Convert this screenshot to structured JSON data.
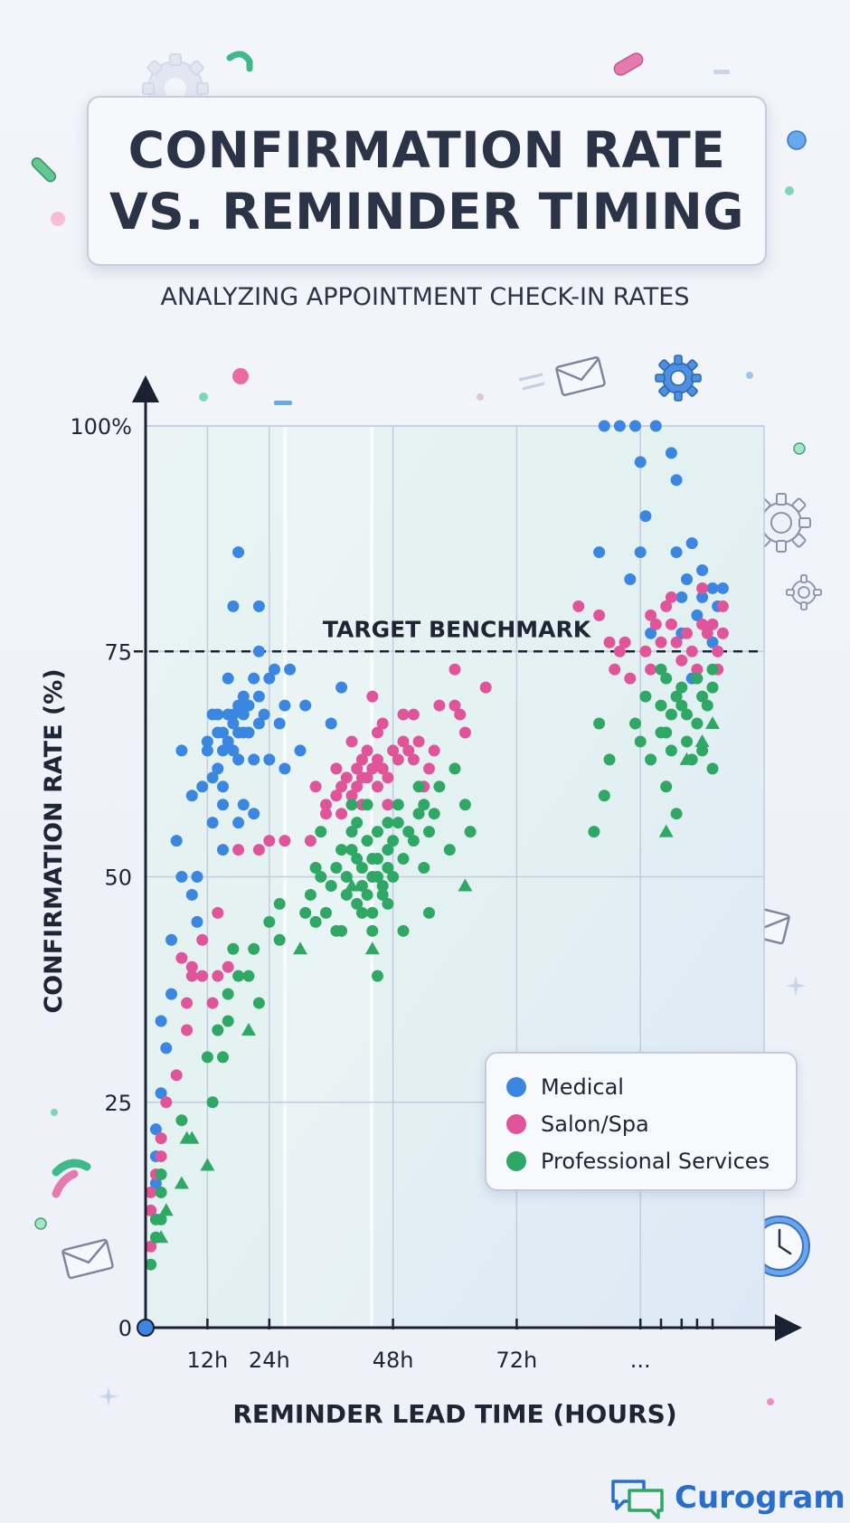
{
  "title_lines": [
    "CONFIRMATION RATE",
    "VS. REMINDER TIMING"
  ],
  "subtitle": "ANALYZING APPOINTMENT CHECK-IN RATES",
  "brand": {
    "name": "Curogram",
    "icon": "chat-bubbles-icon"
  },
  "colors": {
    "medical": "#3a86e0",
    "salon": "#e0559a",
    "professional": "#2fa866",
    "axis": "#1a2132",
    "grid": "#c2cbe0",
    "benchmark": "#1e2535"
  },
  "decorations": [
    "gear-icon",
    "envelope-icon",
    "clock-icon",
    "sparkle-icon"
  ],
  "chart_data": {
    "type": "scatter",
    "title": "CONFIRMATION RATE VS. REMINDER TIMING",
    "subtitle": "ANALYZING APPOINTMENT CHECK-IN RATES",
    "xlabel": "REMINDER LEAD TIME (HOURS)",
    "ylabel": "CONFIRMATION RATE (%)",
    "x_ticks": [
      "12h",
      "24h",
      "48h",
      "72h",
      "..."
    ],
    "y_ticks": [
      "0",
      "25",
      "50",
      "75",
      "100%"
    ],
    "x_tick_values": [
      12,
      24,
      48,
      72,
      96
    ],
    "xlim": [
      0,
      120
    ],
    "ylim": [
      0,
      100
    ],
    "grid": true,
    "legend": "bottom-right",
    "benchmark": {
      "label": "TARGET BENCHMARK",
      "y": 75
    },
    "series": [
      {
        "name": "Medical",
        "points": [
          [
            2,
            16
          ],
          [
            2,
            19
          ],
          [
            2,
            22
          ],
          [
            3,
            26
          ],
          [
            3,
            34
          ],
          [
            4,
            31
          ],
          [
            5,
            37
          ],
          [
            5,
            43
          ],
          [
            6,
            54
          ],
          [
            7,
            64
          ],
          [
            7,
            50
          ],
          [
            9,
            48
          ],
          [
            9,
            59
          ],
          [
            10,
            50
          ],
          [
            10,
            45
          ],
          [
            11,
            60
          ],
          [
            12,
            64
          ],
          [
            12,
            65
          ],
          [
            13,
            61
          ],
          [
            13,
            56
          ],
          [
            13,
            68
          ],
          [
            14,
            62
          ],
          [
            14,
            66
          ],
          [
            14,
            68
          ],
          [
            15,
            60
          ],
          [
            15,
            58
          ],
          [
            15,
            53
          ],
          [
            15,
            64
          ],
          [
            15,
            66
          ],
          [
            16,
            65
          ],
          [
            16,
            68
          ],
          [
            16,
            72
          ],
          [
            17,
            64
          ],
          [
            17,
            67
          ],
          [
            17,
            68
          ],
          [
            17,
            80
          ],
          [
            18,
            63
          ],
          [
            18,
            66
          ],
          [
            18,
            69
          ],
          [
            18,
            86
          ],
          [
            18,
            56
          ],
          [
            19,
            58
          ],
          [
            19,
            68
          ],
          [
            19,
            70
          ],
          [
            19,
            66
          ],
          [
            20,
            66
          ],
          [
            20,
            69
          ],
          [
            21,
            63
          ],
          [
            21,
            57
          ],
          [
            21,
            72
          ],
          [
            22,
            67
          ],
          [
            22,
            70
          ],
          [
            22,
            75
          ],
          [
            22,
            80
          ],
          [
            23,
            68
          ],
          [
            24,
            72
          ],
          [
            24,
            63
          ],
          [
            25,
            73
          ],
          [
            26,
            67
          ],
          [
            27,
            62
          ],
          [
            27,
            69
          ],
          [
            28,
            73
          ],
          [
            30,
            64
          ],
          [
            31,
            69
          ],
          [
            36,
            67
          ],
          [
            38,
            71
          ],
          [
            88,
            86
          ],
          [
            89,
            100
          ],
          [
            92,
            100
          ],
          [
            94,
            83
          ],
          [
            95,
            100
          ],
          [
            96,
            86
          ],
          [
            96,
            96
          ],
          [
            97,
            90
          ],
          [
            98,
            77
          ],
          [
            99,
            100
          ],
          [
            102,
            97
          ],
          [
            103,
            94
          ],
          [
            103,
            86
          ],
          [
            104,
            81
          ],
          [
            104,
            77
          ],
          [
            105,
            83
          ],
          [
            106,
            87
          ],
          [
            106,
            72
          ],
          [
            107,
            79
          ],
          [
            108,
            84
          ],
          [
            108,
            81
          ],
          [
            110,
            82
          ],
          [
            110,
            76
          ],
          [
            111,
            80
          ],
          [
            112,
            82
          ]
        ]
      },
      {
        "name": "Salon/Spa",
        "points": [
          [
            1,
            9
          ],
          [
            1,
            13
          ],
          [
            1,
            15
          ],
          [
            2,
            17
          ],
          [
            3,
            19
          ],
          [
            3,
            21
          ],
          [
            4,
            25
          ],
          [
            6,
            28
          ],
          [
            7,
            41
          ],
          [
            8,
            36
          ],
          [
            8,
            33
          ],
          [
            9,
            39
          ],
          [
            9,
            40
          ],
          [
            11,
            43
          ],
          [
            11,
            39
          ],
          [
            13,
            36
          ],
          [
            14,
            46
          ],
          [
            14,
            39
          ],
          [
            16,
            40
          ],
          [
            18,
            53
          ],
          [
            22,
            53
          ],
          [
            24,
            54
          ],
          [
            27,
            54
          ],
          [
            32,
            54
          ],
          [
            33,
            60
          ],
          [
            35,
            57
          ],
          [
            35,
            58
          ],
          [
            37,
            62
          ],
          [
            37,
            59
          ],
          [
            38,
            57
          ],
          [
            38,
            60
          ],
          [
            39,
            61
          ],
          [
            40,
            59
          ],
          [
            40,
            65
          ],
          [
            41,
            60
          ],
          [
            41,
            62
          ],
          [
            42,
            58
          ],
          [
            42,
            61
          ],
          [
            42,
            63
          ],
          [
            43,
            64
          ],
          [
            43,
            61
          ],
          [
            44,
            62
          ],
          [
            44,
            70
          ],
          [
            45,
            63
          ],
          [
            45,
            66
          ],
          [
            45,
            60
          ],
          [
            46,
            62
          ],
          [
            46,
            67
          ],
          [
            47,
            61
          ],
          [
            47,
            58
          ],
          [
            48,
            64
          ],
          [
            49,
            63
          ],
          [
            50,
            68
          ],
          [
            50,
            65
          ],
          [
            51,
            64
          ],
          [
            52,
            63
          ],
          [
            52,
            68
          ],
          [
            53,
            65
          ],
          [
            54,
            60
          ],
          [
            55,
            62
          ],
          [
            56,
            64
          ],
          [
            57,
            69
          ],
          [
            60,
            73
          ],
          [
            60,
            69
          ],
          [
            61,
            68
          ],
          [
            62,
            66
          ],
          [
            66,
            71
          ],
          [
            84,
            80
          ],
          [
            88,
            79
          ],
          [
            90,
            76
          ],
          [
            91,
            73
          ],
          [
            92,
            75
          ],
          [
            93,
            76
          ],
          [
            94,
            72
          ],
          [
            97,
            75
          ],
          [
            98,
            79
          ],
          [
            98,
            73
          ],
          [
            99,
            78
          ],
          [
            100,
            76
          ],
          [
            101,
            80
          ],
          [
            102,
            81
          ],
          [
            102,
            78
          ],
          [
            103,
            76
          ],
          [
            104,
            74
          ],
          [
            105,
            77
          ],
          [
            106,
            75
          ],
          [
            107,
            73
          ],
          [
            108,
            78
          ],
          [
            108,
            82
          ],
          [
            109,
            77
          ],
          [
            110,
            78
          ],
          [
            111,
            75
          ],
          [
            112,
            80
          ],
          [
            112,
            77
          ],
          [
            111,
            73
          ]
        ]
      },
      {
        "name": "Professional Services",
        "points": [
          [
            1,
            7
          ],
          [
            2,
            10
          ],
          [
            2,
            12
          ],
          [
            3,
            12
          ],
          [
            3,
            15
          ],
          [
            3,
            17
          ],
          [
            7,
            23
          ],
          [
            12,
            30
          ],
          [
            13,
            25
          ],
          [
            14,
            33
          ],
          [
            15,
            30
          ],
          [
            16,
            37
          ],
          [
            16,
            34
          ],
          [
            17,
            42
          ],
          [
            18,
            39
          ],
          [
            20,
            39
          ],
          [
            21,
            42
          ],
          [
            22,
            36
          ],
          [
            24,
            45
          ],
          [
            26,
            47
          ],
          [
            26,
            43
          ],
          [
            31,
            46
          ],
          [
            32,
            48
          ],
          [
            33,
            45
          ],
          [
            33,
            51
          ],
          [
            34,
            50
          ],
          [
            34,
            55
          ],
          [
            35,
            46
          ],
          [
            36,
            49
          ],
          [
            37,
            51
          ],
          [
            37,
            44
          ],
          [
            38,
            44
          ],
          [
            38,
            53
          ],
          [
            39,
            48
          ],
          [
            39,
            50
          ],
          [
            40,
            53
          ],
          [
            40,
            55
          ],
          [
            40,
            58
          ],
          [
            41,
            47
          ],
          [
            41,
            52
          ],
          [
            41,
            56
          ],
          [
            42,
            46
          ],
          [
            42,
            49
          ],
          [
            42,
            51
          ],
          [
            43,
            48
          ],
          [
            43,
            54
          ],
          [
            43,
            58
          ],
          [
            44,
            44
          ],
          [
            44,
            46
          ],
          [
            44,
            50
          ],
          [
            44,
            52
          ],
          [
            45,
            39
          ],
          [
            45,
            50
          ],
          [
            45,
            52
          ],
          [
            45,
            55
          ],
          [
            46,
            48
          ],
          [
            46,
            49
          ],
          [
            47,
            47
          ],
          [
            47,
            51
          ],
          [
            47,
            53
          ],
          [
            47,
            56
          ],
          [
            48,
            50
          ],
          [
            48,
            54
          ],
          [
            49,
            56
          ],
          [
            49,
            58
          ],
          [
            50,
            44
          ],
          [
            50,
            52
          ],
          [
            51,
            55
          ],
          [
            52,
            54
          ],
          [
            53,
            57
          ],
          [
            53,
            60
          ],
          [
            54,
            51
          ],
          [
            54,
            58
          ],
          [
            55,
            46
          ],
          [
            55,
            55
          ],
          [
            56,
            57
          ],
          [
            57,
            60
          ],
          [
            59,
            53
          ],
          [
            60,
            62
          ],
          [
            62,
            58
          ],
          [
            63,
            55
          ],
          [
            87,
            55
          ],
          [
            88,
            67
          ],
          [
            89,
            59
          ],
          [
            90,
            63
          ],
          [
            95,
            67
          ],
          [
            96,
            65
          ],
          [
            97,
            70
          ],
          [
            98,
            63
          ],
          [
            100,
            73
          ],
          [
            100,
            66
          ],
          [
            100,
            69
          ],
          [
            101,
            60
          ],
          [
            101,
            66
          ],
          [
            101,
            72
          ],
          [
            102,
            64
          ],
          [
            102,
            68
          ],
          [
            103,
            70
          ],
          [
            103,
            57
          ],
          [
            104,
            71
          ],
          [
            104,
            69
          ],
          [
            105,
            65
          ],
          [
            105,
            68
          ],
          [
            106,
            63
          ],
          [
            107,
            67
          ],
          [
            108,
            70
          ],
          [
            108,
            64
          ],
          [
            109,
            69
          ],
          [
            110,
            73
          ],
          [
            110,
            71
          ],
          [
            110,
            62
          ],
          [
            107,
            72
          ]
        ]
      }
    ],
    "triangle_points": [
      {
        "series": "Professional Services",
        "points": [
          [
            3,
            10
          ],
          [
            4,
            13
          ],
          [
            7,
            16
          ],
          [
            8,
            21
          ],
          [
            9,
            21
          ],
          [
            12,
            18
          ],
          [
            20,
            33
          ],
          [
            30,
            42
          ],
          [
            40,
            49
          ],
          [
            44,
            42
          ],
          [
            62,
            49
          ],
          [
            101,
            55
          ],
          [
            105,
            63
          ],
          [
            108,
            65
          ],
          [
            110,
            67
          ]
        ]
      }
    ]
  }
}
